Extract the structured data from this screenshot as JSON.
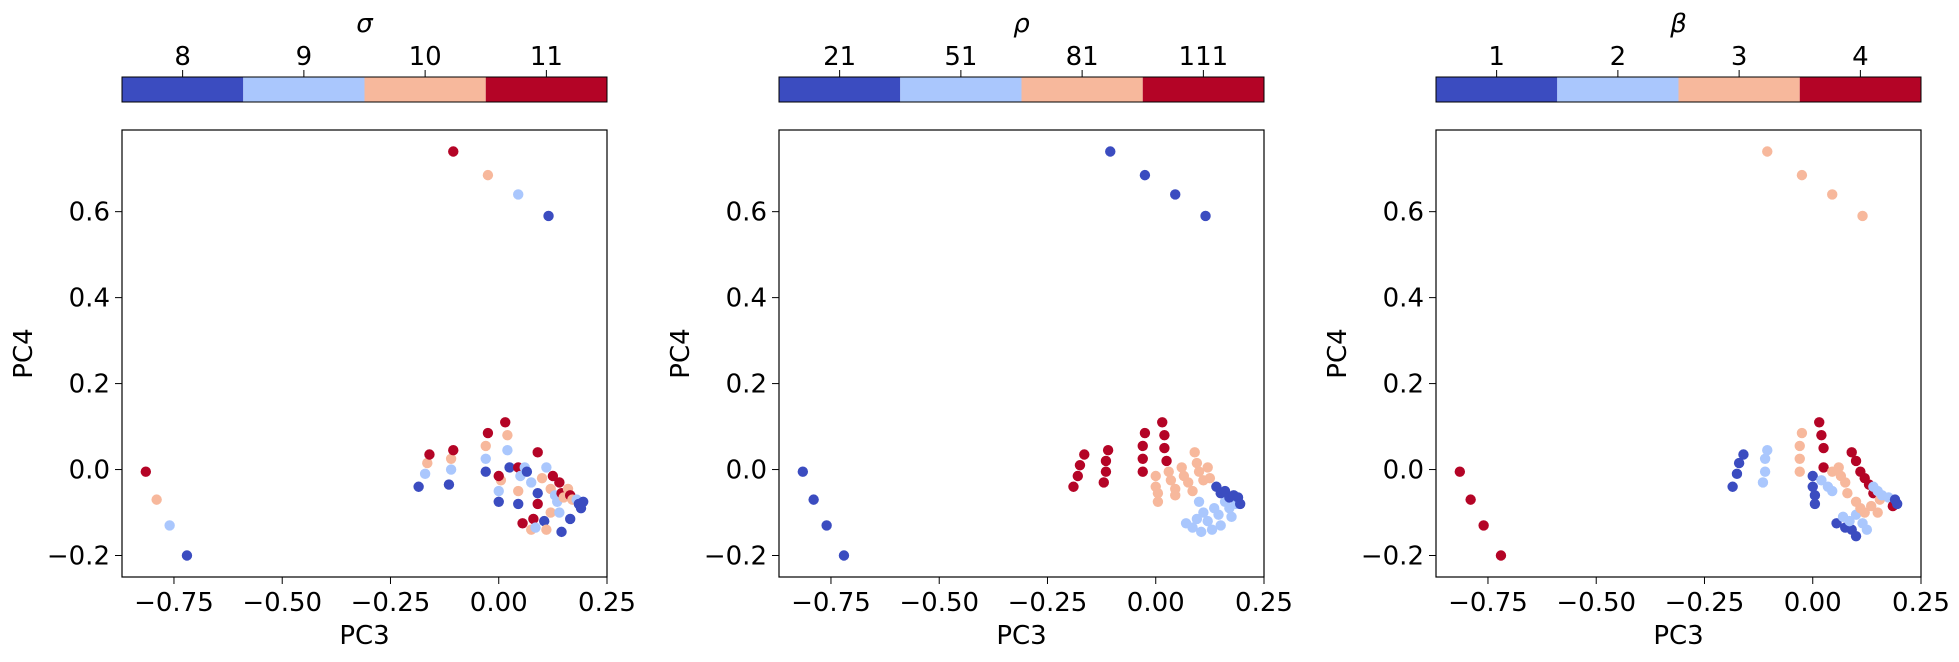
{
  "palette": [
    "#3b4cc0",
    "#aac7fd",
    "#f7b89c",
    "#b40426"
  ],
  "chart_data": [
    {
      "type": "scatter",
      "xlabel": "PC3",
      "ylabel": "PC4",
      "xlim": [
        -0.87,
        0.25
      ],
      "ylim": [
        -0.25,
        0.79
      ],
      "xticks": [
        -0.75,
        -0.5,
        -0.25,
        0.0,
        0.25
      ],
      "xtick_labels": [
        "−0.75",
        "−0.50",
        "−0.25",
        "0.00",
        "0.25"
      ],
      "yticks": [
        -0.2,
        0.0,
        0.2,
        0.4,
        0.6
      ],
      "ytick_labels": [
        "−0.2",
        "0.0",
        "0.2",
        "0.4",
        "0.6"
      ],
      "grid": false,
      "colorbar": {
        "label": "σ",
        "position": "top",
        "ticks": [
          "8",
          "9",
          "10",
          "11"
        ]
      },
      "points": [
        [
          -0.815,
          -0.005,
          3
        ],
        [
          -0.79,
          -0.07,
          2
        ],
        [
          -0.76,
          -0.13,
          1
        ],
        [
          -0.72,
          -0.2,
          0
        ],
        [
          -0.105,
          0.74,
          3
        ],
        [
          -0.025,
          0.685,
          2
        ],
        [
          0.045,
          0.64,
          1
        ],
        [
          0.115,
          0.59,
          0
        ],
        [
          -0.185,
          -0.04,
          0
        ],
        [
          -0.17,
          -0.01,
          1
        ],
        [
          -0.165,
          0.015,
          2
        ],
        [
          -0.16,
          0.035,
          3
        ],
        [
          -0.115,
          -0.035,
          0
        ],
        [
          -0.11,
          0.0,
          1
        ],
        [
          -0.11,
          0.025,
          2
        ],
        [
          -0.105,
          0.045,
          3
        ],
        [
          -0.03,
          -0.005,
          0
        ],
        [
          -0.03,
          0.025,
          1
        ],
        [
          -0.03,
          0.055,
          2
        ],
        [
          -0.025,
          0.085,
          3
        ],
        [
          0.0,
          -0.075,
          0
        ],
        [
          0.0,
          -0.05,
          1
        ],
        [
          0.005,
          -0.025,
          2
        ],
        [
          0.0,
          -0.015,
          3
        ],
        [
          0.015,
          0.11,
          3
        ],
        [
          0.02,
          0.08,
          2
        ],
        [
          0.02,
          0.045,
          1
        ],
        [
          0.025,
          0.005,
          0
        ],
        [
          0.045,
          -0.08,
          0
        ],
        [
          0.045,
          -0.05,
          2
        ],
        [
          0.045,
          0.005,
          3
        ],
        [
          0.05,
          -0.015,
          1
        ],
        [
          0.06,
          0.005,
          1
        ],
        [
          0.065,
          -0.005,
          0
        ],
        [
          0.055,
          -0.125,
          3
        ],
        [
          0.075,
          -0.03,
          1
        ],
        [
          0.075,
          -0.14,
          2
        ],
        [
          0.08,
          -0.115,
          3
        ],
        [
          0.085,
          -0.135,
          1
        ],
        [
          0.09,
          0.04,
          3
        ],
        [
          0.09,
          -0.055,
          0
        ],
        [
          0.09,
          -0.08,
          3
        ],
        [
          0.1,
          -0.02,
          2
        ],
        [
          0.105,
          -0.12,
          0
        ],
        [
          0.11,
          -0.14,
          2
        ],
        [
          0.11,
          0.005,
          1
        ],
        [
          0.12,
          -0.045,
          2
        ],
        [
          0.12,
          -0.1,
          2
        ],
        [
          0.125,
          -0.015,
          3
        ],
        [
          0.13,
          -0.06,
          1
        ],
        [
          0.135,
          -0.075,
          1
        ],
        [
          0.14,
          -0.03,
          3
        ],
        [
          0.145,
          -0.055,
          3
        ],
        [
          0.14,
          -0.1,
          1
        ],
        [
          0.15,
          -0.065,
          2
        ],
        [
          0.145,
          -0.145,
          0
        ],
        [
          0.16,
          -0.045,
          2
        ],
        [
          0.165,
          -0.06,
          3
        ],
        [
          0.17,
          -0.07,
          2
        ],
        [
          0.165,
          -0.115,
          0
        ],
        [
          0.18,
          -0.07,
          1
        ],
        [
          0.185,
          -0.08,
          0
        ],
        [
          0.19,
          -0.09,
          0
        ],
        [
          0.195,
          -0.075,
          0
        ]
      ]
    },
    {
      "type": "scatter",
      "xlabel": "PC3",
      "ylabel": "PC4",
      "xlim": [
        -0.87,
        0.25
      ],
      "ylim": [
        -0.25,
        0.79
      ],
      "xticks": [
        -0.75,
        -0.5,
        -0.25,
        0.0,
        0.25
      ],
      "xtick_labels": [
        "−0.75",
        "−0.50",
        "−0.25",
        "0.00",
        "0.25"
      ],
      "yticks": [
        -0.2,
        0.0,
        0.2,
        0.4,
        0.6
      ],
      "ytick_labels": [
        "−0.2",
        "0.0",
        "0.2",
        "0.4",
        "0.6"
      ],
      "grid": false,
      "colorbar": {
        "label": "ρ",
        "position": "top",
        "ticks": [
          "21",
          "51",
          "81",
          "111"
        ]
      },
      "points": [
        [
          -0.815,
          -0.005,
          0
        ],
        [
          -0.79,
          -0.07,
          0
        ],
        [
          -0.76,
          -0.13,
          0
        ],
        [
          -0.72,
          -0.2,
          0
        ],
        [
          -0.105,
          0.74,
          0
        ],
        [
          -0.025,
          0.685,
          0
        ],
        [
          0.045,
          0.64,
          0
        ],
        [
          0.115,
          0.59,
          0
        ],
        [
          -0.19,
          -0.04,
          3
        ],
        [
          -0.18,
          -0.015,
          3
        ],
        [
          -0.175,
          0.01,
          3
        ],
        [
          -0.165,
          0.035,
          3
        ],
        [
          -0.12,
          -0.03,
          3
        ],
        [
          -0.115,
          -0.005,
          3
        ],
        [
          -0.115,
          0.02,
          3
        ],
        [
          -0.11,
          0.045,
          3
        ],
        [
          -0.03,
          0.025,
          3
        ],
        [
          -0.03,
          0.055,
          3
        ],
        [
          -0.025,
          0.085,
          3
        ],
        [
          0.015,
          0.11,
          3
        ],
        [
          0.02,
          0.08,
          3
        ],
        [
          0.02,
          0.05,
          3
        ],
        [
          0.025,
          0.02,
          3
        ],
        [
          -0.03,
          -0.005,
          3
        ],
        [
          0.0,
          -0.015,
          2
        ],
        [
          0.0,
          -0.04,
          2
        ],
        [
          0.005,
          -0.055,
          2
        ],
        [
          0.005,
          -0.075,
          2
        ],
        [
          0.03,
          -0.005,
          2
        ],
        [
          0.035,
          -0.025,
          2
        ],
        [
          0.045,
          -0.045,
          2
        ],
        [
          0.045,
          -0.06,
          2
        ],
        [
          0.06,
          0.005,
          2
        ],
        [
          0.065,
          -0.015,
          2
        ],
        [
          0.075,
          -0.03,
          2
        ],
        [
          0.085,
          -0.05,
          2
        ],
        [
          0.09,
          0.04,
          2
        ],
        [
          0.095,
          0.015,
          2
        ],
        [
          0.1,
          -0.005,
          2
        ],
        [
          0.11,
          -0.025,
          2
        ],
        [
          0.12,
          0.005,
          2
        ],
        [
          0.125,
          -0.02,
          2
        ],
        [
          0.07,
          -0.125,
          1
        ],
        [
          0.085,
          -0.135,
          1
        ],
        [
          0.095,
          -0.115,
          1
        ],
        [
          0.105,
          -0.145,
          1
        ],
        [
          0.11,
          -0.1,
          1
        ],
        [
          0.12,
          -0.12,
          1
        ],
        [
          0.13,
          -0.14,
          1
        ],
        [
          0.135,
          -0.09,
          1
        ],
        [
          0.145,
          -0.105,
          1
        ],
        [
          0.15,
          -0.13,
          1
        ],
        [
          0.16,
          -0.075,
          1
        ],
        [
          0.17,
          -0.09,
          1
        ],
        [
          0.175,
          -0.11,
          1
        ],
        [
          0.185,
          -0.08,
          1
        ],
        [
          0.1,
          -0.075,
          1
        ],
        [
          0.14,
          -0.04,
          0
        ],
        [
          0.15,
          -0.055,
          0
        ],
        [
          0.16,
          -0.05,
          0
        ],
        [
          0.17,
          -0.065,
          0
        ],
        [
          0.18,
          -0.06,
          0
        ],
        [
          0.19,
          -0.065,
          0
        ],
        [
          0.195,
          -0.08,
          0
        ]
      ]
    },
    {
      "type": "scatter",
      "xlabel": "PC3",
      "ylabel": "PC4",
      "xlim": [
        -0.87,
        0.25
      ],
      "ylim": [
        -0.25,
        0.79
      ],
      "xticks": [
        -0.75,
        -0.5,
        -0.25,
        0.0,
        0.25
      ],
      "xtick_labels": [
        "−0.75",
        "−0.50",
        "−0.25",
        "0.00",
        "0.25"
      ],
      "yticks": [
        -0.2,
        0.0,
        0.2,
        0.4,
        0.6
      ],
      "ytick_labels": [
        "−0.2",
        "0.0",
        "0.2",
        "0.4",
        "0.6"
      ],
      "grid": false,
      "colorbar": {
        "label": "β",
        "position": "top",
        "ticks": [
          "1",
          "2",
          "3",
          "4"
        ]
      },
      "points": [
        [
          -0.815,
          -0.005,
          3
        ],
        [
          -0.79,
          -0.07,
          3
        ],
        [
          -0.76,
          -0.13,
          3
        ],
        [
          -0.72,
          -0.2,
          3
        ],
        [
          -0.105,
          0.74,
          2
        ],
        [
          -0.025,
          0.685,
          2
        ],
        [
          0.045,
          0.64,
          2
        ],
        [
          0.115,
          0.59,
          2
        ],
        [
          -0.185,
          -0.04,
          0
        ],
        [
          -0.175,
          -0.01,
          0
        ],
        [
          -0.17,
          0.015,
          0
        ],
        [
          -0.16,
          0.035,
          0
        ],
        [
          -0.115,
          -0.03,
          1
        ],
        [
          -0.11,
          -0.005,
          1
        ],
        [
          -0.11,
          0.025,
          1
        ],
        [
          -0.105,
          0.045,
          1
        ],
        [
          -0.03,
          -0.005,
          2
        ],
        [
          -0.03,
          0.025,
          2
        ],
        [
          -0.03,
          0.055,
          2
        ],
        [
          -0.025,
          0.085,
          2
        ],
        [
          0.0,
          -0.015,
          0
        ],
        [
          0.0,
          -0.04,
          0
        ],
        [
          0.005,
          -0.06,
          0
        ],
        [
          0.005,
          -0.08,
          0
        ],
        [
          0.015,
          0.11,
          3
        ],
        [
          0.02,
          0.08,
          3
        ],
        [
          0.025,
          0.05,
          3
        ],
        [
          0.025,
          0.005,
          3
        ],
        [
          0.02,
          -0.025,
          1
        ],
        [
          0.035,
          -0.04,
          1
        ],
        [
          0.045,
          -0.05,
          1
        ],
        [
          0.045,
          -0.005,
          2
        ],
        [
          0.06,
          0.005,
          2
        ],
        [
          0.065,
          -0.015,
          2
        ],
        [
          0.075,
          -0.03,
          2
        ],
        [
          0.08,
          -0.055,
          2
        ],
        [
          0.055,
          -0.125,
          0
        ],
        [
          0.075,
          -0.135,
          0
        ],
        [
          0.09,
          -0.14,
          0
        ],
        [
          0.1,
          -0.155,
          0
        ],
        [
          0.07,
          -0.11,
          1
        ],
        [
          0.085,
          -0.12,
          1
        ],
        [
          0.1,
          -0.105,
          1
        ],
        [
          0.115,
          -0.125,
          1
        ],
        [
          0.125,
          -0.14,
          1
        ],
        [
          0.09,
          0.04,
          3
        ],
        [
          0.1,
          0.02,
          3
        ],
        [
          0.11,
          -0.005,
          3
        ],
        [
          0.12,
          -0.02,
          3
        ],
        [
          0.13,
          -0.035,
          3
        ],
        [
          0.14,
          -0.055,
          3
        ],
        [
          0.1,
          -0.075,
          2
        ],
        [
          0.11,
          -0.09,
          2
        ],
        [
          0.12,
          -0.1,
          2
        ],
        [
          0.135,
          -0.085,
          2
        ],
        [
          0.15,
          -0.1,
          2
        ],
        [
          0.155,
          -0.07,
          2
        ],
        [
          0.14,
          -0.04,
          1
        ],
        [
          0.15,
          -0.05,
          1
        ],
        [
          0.16,
          -0.06,
          1
        ],
        [
          0.175,
          -0.065,
          1
        ],
        [
          0.185,
          -0.085,
          3
        ],
        [
          0.19,
          -0.07,
          0
        ],
        [
          0.195,
          -0.08,
          0
        ]
      ]
    }
  ]
}
